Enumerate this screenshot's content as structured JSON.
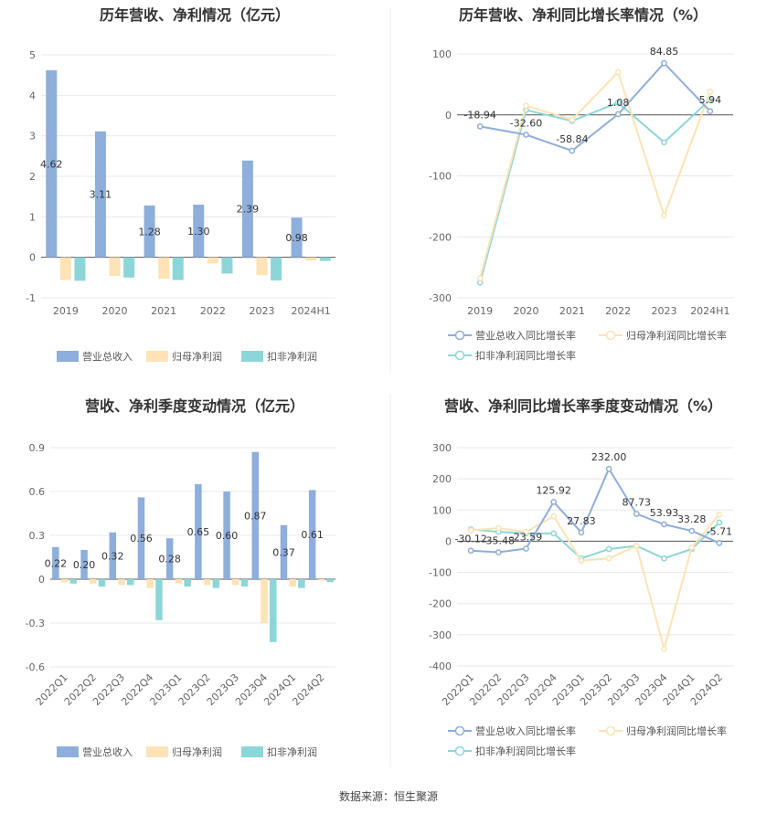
{
  "colors": {
    "revenue": "#8eaedb",
    "netprofit": "#fde3b5",
    "deducted": "#8dd6d8"
  },
  "footer": "数据来源：恒生聚源",
  "chart_data": [
    {
      "id": "annual-amount",
      "type": "bar",
      "title": "历年营收、净利情况（亿元）",
      "categories": [
        "2019",
        "2020",
        "2021",
        "2022",
        "2023",
        "2024H1"
      ],
      "ylim": [
        -1,
        5
      ],
      "yticks": [
        -1,
        0,
        1,
        2,
        3,
        4,
        5
      ],
      "series": [
        {
          "name": "营业总收入",
          "values": [
            4.62,
            3.11,
            1.28,
            1.3,
            2.39,
            0.98
          ],
          "labels": [
            "4.62",
            "3.11",
            "1.28",
            "1.30",
            "2.39",
            "0.98"
          ]
        },
        {
          "name": "归母净利润",
          "values": [
            -0.56,
            -0.46,
            -0.53,
            -0.15,
            -0.44,
            -0.08
          ]
        },
        {
          "name": "扣非净利润",
          "values": [
            -0.58,
            -0.5,
            -0.56,
            -0.4,
            -0.57,
            -0.09
          ]
        }
      ]
    },
    {
      "id": "annual-growth",
      "type": "line",
      "title": "历年营收、净利同比增长率情况（%）",
      "categories": [
        "2019",
        "2020",
        "2021",
        "2022",
        "2023",
        "2024H1"
      ],
      "ylim": [
        -300,
        100
      ],
      "yticks": [
        -300,
        -200,
        -100,
        0,
        100
      ],
      "series": [
        {
          "name": "营业总收入同比增长率",
          "values": [
            -18.94,
            -32.6,
            -58.84,
            1.08,
            84.85,
            5.94
          ],
          "labels": [
            "-18.94",
            "-32.60",
            "-58.84",
            "1.08",
            "84.85",
            "5.94"
          ]
        },
        {
          "name": "归母净利润同比增长率",
          "values": [
            -268,
            15,
            -8,
            70,
            -165,
            38
          ]
        },
        {
          "name": "扣非净利润同比增长率",
          "values": [
            -275,
            8,
            -10,
            20,
            -45,
            25
          ]
        }
      ]
    },
    {
      "id": "quarterly-amount",
      "type": "bar",
      "title": "营收、净利季度变动情况（亿元）",
      "categories": [
        "2022Q1",
        "2022Q2",
        "2022Q3",
        "2022Q4",
        "2023Q1",
        "2023Q2",
        "2023Q3",
        "2023Q4",
        "2024Q1",
        "2024Q2"
      ],
      "ylim": [
        -0.6,
        0.9
      ],
      "yticks": [
        -0.6,
        -0.3,
        0,
        0.3,
        0.6,
        0.9
      ],
      "ytick_labels": [
        "-0.6",
        "-0.3",
        "0",
        "0.3",
        "0.6",
        "0.9"
      ],
      "series": [
        {
          "name": "营业总收入",
          "values": [
            0.22,
            0.2,
            0.32,
            0.56,
            0.28,
            0.65,
            0.6,
            0.87,
            0.37,
            0.61
          ],
          "labels": [
            "0.22",
            "0.20",
            "0.32",
            "0.56",
            "0.28",
            "0.65",
            "0.60",
            "0.87",
            "0.37",
            "0.61"
          ]
        },
        {
          "name": "归母净利润",
          "values": [
            -0.02,
            -0.03,
            -0.04,
            -0.06,
            -0.03,
            -0.04,
            -0.04,
            -0.3,
            -0.05,
            -0.01
          ]
        },
        {
          "name": "扣非净利润",
          "values": [
            -0.03,
            -0.05,
            -0.04,
            -0.28,
            -0.05,
            -0.06,
            -0.05,
            -0.43,
            -0.06,
            -0.02
          ]
        }
      ]
    },
    {
      "id": "quarterly-growth",
      "type": "line",
      "title": "营收、净利同比增长率季度变动情况（%）",
      "categories": [
        "2022Q1",
        "2022Q2",
        "2022Q3",
        "2022Q4",
        "2023Q1",
        "2023Q2",
        "2023Q3",
        "2023Q4",
        "2024Q1",
        "2024Q2"
      ],
      "ylim": [
        -400,
        300
      ],
      "yticks": [
        -400,
        -300,
        -200,
        -100,
        0,
        100,
        200,
        300
      ],
      "series": [
        {
          "name": "营业总收入同比增长率",
          "values": [
            -30.12,
            -35.48,
            -23.59,
            125.92,
            27.83,
            232.0,
            87.73,
            53.93,
            33.28,
            -5.71
          ],
          "labels": [
            "-30.12",
            "-35.48",
            "-23.59",
            "125.92",
            "27.83",
            "232.00",
            "87.73",
            "53.93",
            "33.28",
            "-5.71"
          ]
        },
        {
          "name": "归母净利润同比增长率",
          "values": [
            35,
            42,
            30,
            80,
            -62,
            -55,
            -15,
            -345,
            -20,
            85
          ]
        },
        {
          "name": "扣非净利润同比增长率",
          "values": [
            38,
            30,
            25,
            25,
            -55,
            -25,
            -15,
            -55,
            -25,
            60
          ]
        }
      ]
    }
  ]
}
